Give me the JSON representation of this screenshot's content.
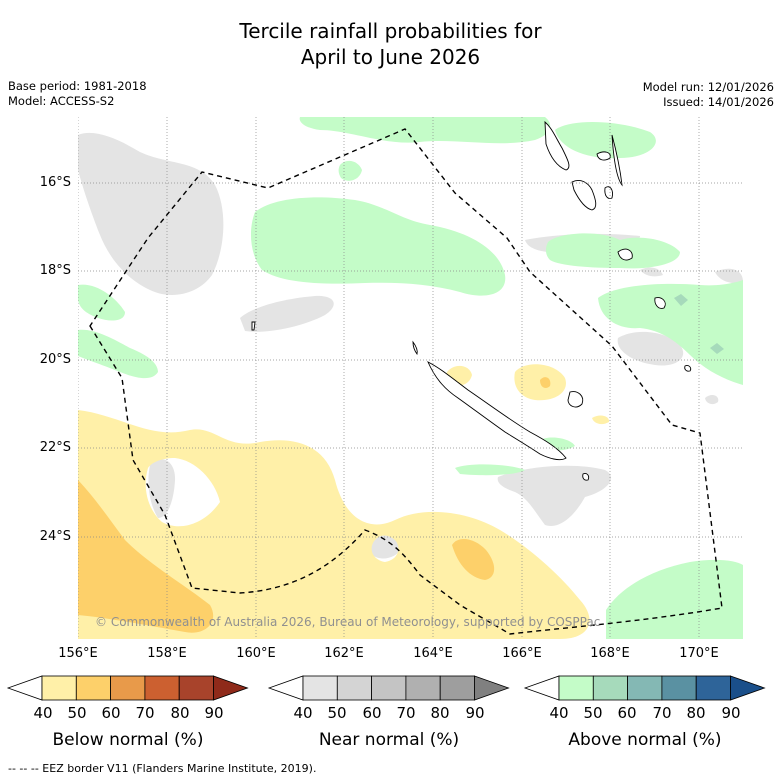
{
  "title": {
    "line1": "Tercile rainfall probabilities for",
    "line2": "April to June 2026"
  },
  "meta": {
    "base_period": "Base period: 1981-2018",
    "model": "Model: ACCESS-S2",
    "model_run": "Model run: 12/01/2026",
    "issued": "Issued: 14/01/2026"
  },
  "map": {
    "latitude_ticks": [
      "16°S",
      "18°S",
      "20°S",
      "22°S",
      "24°S"
    ],
    "longitude_ticks": [
      "156°E",
      "158°E",
      "160°E",
      "162°E",
      "164°E",
      "166°E",
      "168°E",
      "170°E"
    ],
    "copyright": "© Commonwealth of Australia 2026, Bureau of Meteorology, supported by COSPPac"
  },
  "colorbars": [
    {
      "label": "Below normal (%)",
      "ticks": [
        "40",
        "50",
        "60",
        "70",
        "80",
        "90"
      ],
      "colors": [
        "#ffffff",
        "#fff0a8",
        "#fdd06a",
        "#e89a4a",
        "#cc6030",
        "#a8432b",
        "#8f2a1a"
      ]
    },
    {
      "label": "Near normal (%)",
      "ticks": [
        "40",
        "50",
        "60",
        "70",
        "80",
        "90"
      ],
      "colors": [
        "#ffffff",
        "#e4e4e4",
        "#d4d4d4",
        "#c4c4c4",
        "#b0b0b0",
        "#9e9e9e",
        "#808080"
      ]
    },
    {
      "label": "Above normal (%)",
      "ticks": [
        "40",
        "50",
        "60",
        "70",
        "80",
        "90"
      ],
      "colors": [
        "#ffffff",
        "#c4fcc8",
        "#a6dabb",
        "#84b8b4",
        "#5a91a2",
        "#2e6499",
        "#1a4f8a"
      ]
    }
  ],
  "footer": "--  --  -- EEZ border V11 (Flanders Marine Institute, 2019)."
}
